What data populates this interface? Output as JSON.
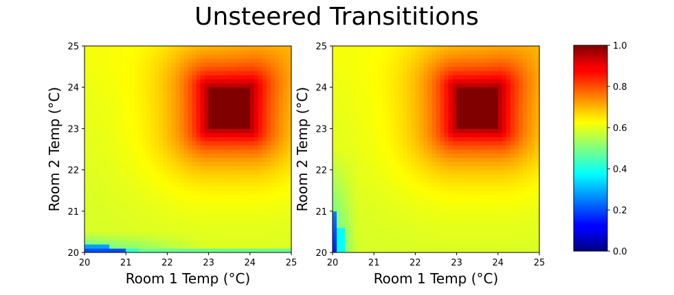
{
  "chart_data": {
    "title": "Unsteered Transititions",
    "type": "heatmap",
    "colormap": "jet",
    "panels": [
      {
        "xlabel": "Room 1 Temp (°C)",
        "ylabel": "Room 2 Temp (°C)",
        "xlim": [
          20,
          25
        ],
        "ylim": [
          20,
          25
        ],
        "xticks": [
          "20",
          "21",
          "22",
          "23",
          "24",
          "25"
        ],
        "yticks": [
          "20",
          "21",
          "22",
          "23",
          "24",
          "25"
        ],
        "target_box": {
          "x": [
            23,
            24
          ],
          "y": [
            23,
            24
          ],
          "value": 1.0
        },
        "low_region": "bottom strip near Room 2 Temp = 20, values ~0.2–0.4"
      },
      {
        "xlabel": "Room 1 Temp (°C)",
        "ylabel": "Room 2 Temp (°C)",
        "xlim": [
          20,
          25
        ],
        "ylim": [
          20,
          25
        ],
        "xticks": [
          "20",
          "21",
          "22",
          "23",
          "24",
          "25"
        ],
        "yticks": [
          "20",
          "21",
          "22",
          "23",
          "24",
          "25"
        ],
        "target_box": {
          "x": [
            23,
            24
          ],
          "y": [
            23,
            24
          ],
          "value": 1.0
        },
        "low_region": "left strip near Room 1 Temp = 20, values ~0.15–0.4"
      }
    ],
    "colorbar": {
      "range": [
        0.0,
        1.0
      ],
      "ticks": [
        "0.0",
        "0.2",
        "0.4",
        "0.6",
        "0.8",
        "1.0"
      ]
    }
  }
}
